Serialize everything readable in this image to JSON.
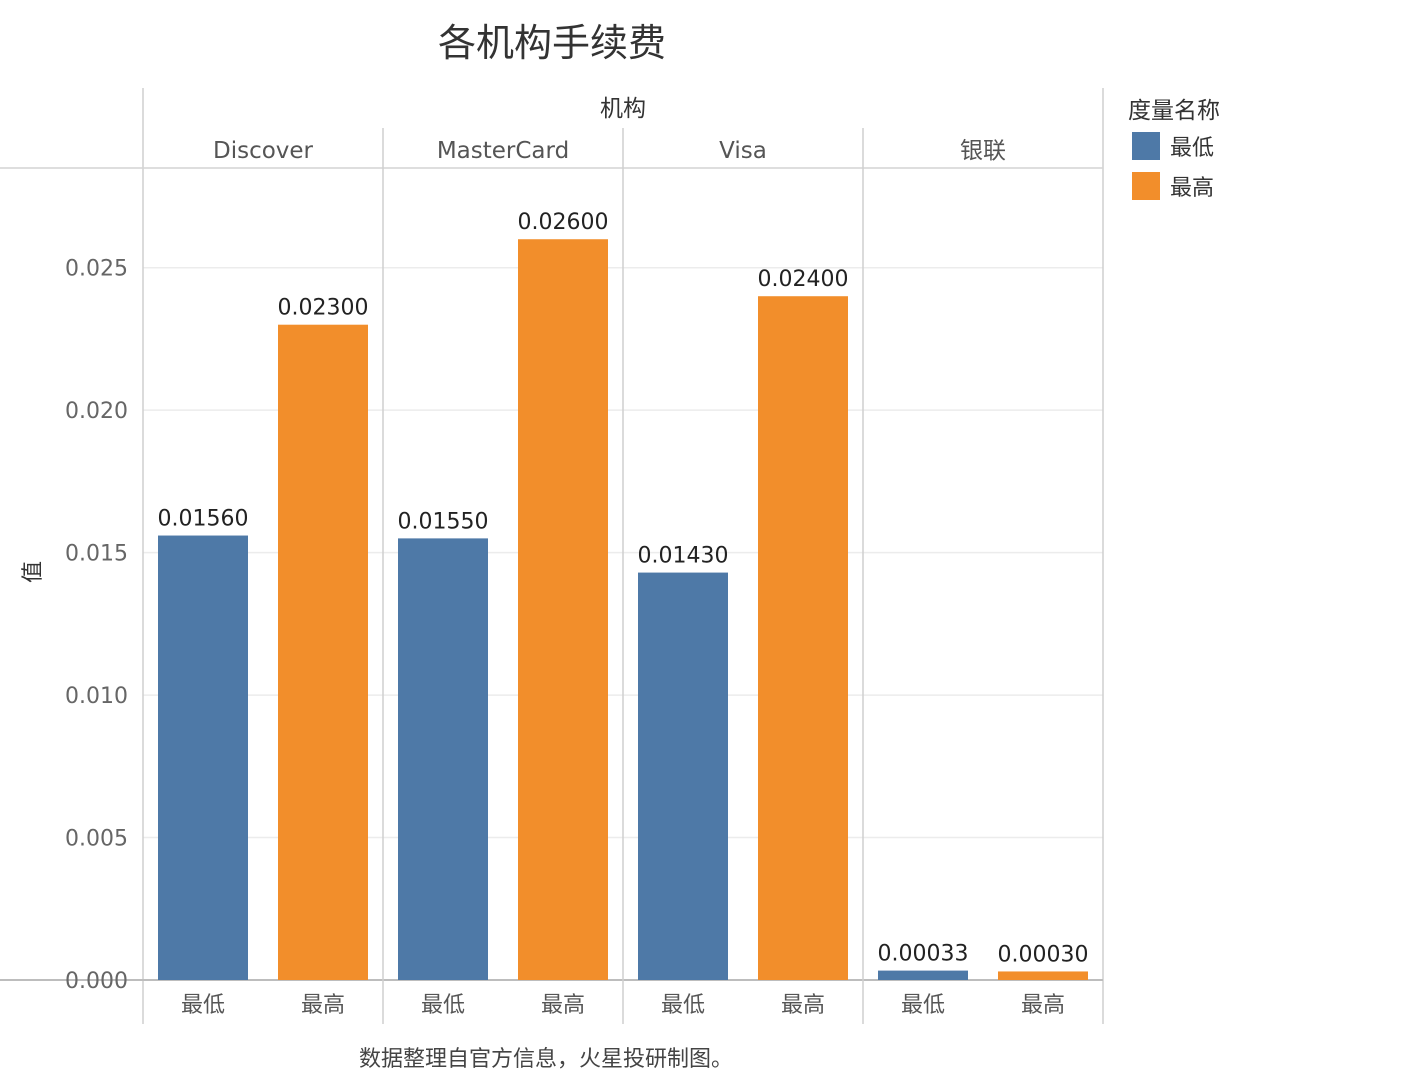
{
  "chart_data": {
    "type": "bar",
    "title": "各机构手续费",
    "column_header": "机构",
    "ylabel": "值",
    "source_note": "数据整理自官方信息，火星投研制图。",
    "ylim": [
      0,
      0.0285
    ],
    "y_ticks": [
      "0.000",
      "0.005",
      "0.010",
      "0.015",
      "0.020",
      "0.025"
    ],
    "y_tick_values": [
      0,
      0.005,
      0.01,
      0.015,
      0.02,
      0.025
    ],
    "grid": true,
    "legend_title": "度量名称",
    "legend_position": "right",
    "series": [
      {
        "name": "最低",
        "color": "#4e79a7"
      },
      {
        "name": "最高",
        "color": "#f28e2b"
      }
    ],
    "panels": [
      {
        "name": "Discover",
        "bars": [
          {
            "category": "最低",
            "value": 0.0156,
            "label": "0.01560"
          },
          {
            "category": "最高",
            "value": 0.023,
            "label": "0.02300"
          }
        ]
      },
      {
        "name": "MasterCard",
        "bars": [
          {
            "category": "最低",
            "value": 0.0155,
            "label": "0.01550"
          },
          {
            "category": "最高",
            "value": 0.026,
            "label": "0.02600"
          }
        ]
      },
      {
        "name": "Visa",
        "bars": [
          {
            "category": "最低",
            "value": 0.0143,
            "label": "0.01430"
          },
          {
            "category": "最高",
            "value": 0.024,
            "label": "0.02400"
          }
        ]
      },
      {
        "name": "银联",
        "bars": [
          {
            "category": "最低",
            "value": 0.00033,
            "label": "0.00033"
          },
          {
            "category": "最高",
            "value": 0.0003,
            "label": "0.00030"
          }
        ]
      }
    ]
  }
}
